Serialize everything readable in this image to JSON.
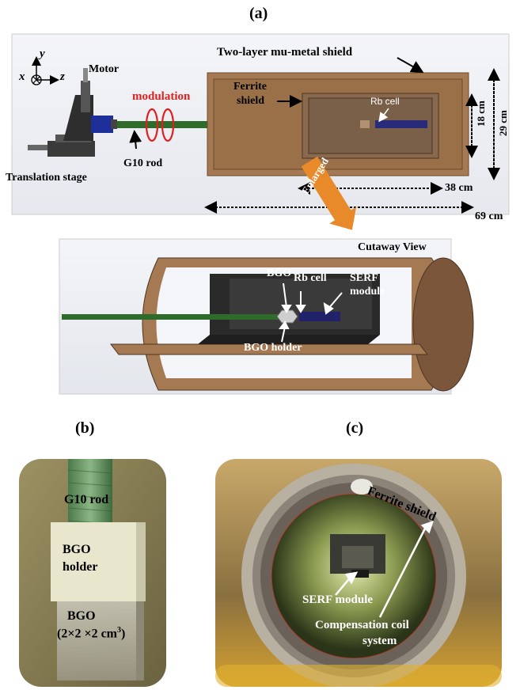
{
  "panel_a": {
    "label": "(a)",
    "axes": {
      "x": "x",
      "y": "y",
      "z": "z"
    },
    "labels": {
      "motor": "Motor",
      "modulation": "modulation",
      "translation_stage": "Translation stage",
      "g10_rod": "G10 rod",
      "mu_metal": "Two-layer mu-metal shield",
      "ferrite": "Ferrite",
      "ferrite2": "shield",
      "rb_cell": "Rb cell",
      "enlarged": "Enlarged"
    },
    "dimensions": {
      "d18": "18 cm",
      "d29": "29 cm",
      "d38": "38 cm",
      "d69": "69 cm"
    },
    "cutaway": {
      "title": "Cutaway View",
      "bgo": "BGO",
      "rb_cell": "Rb cell",
      "serf1": "SERF",
      "serf2": "module",
      "bgo_holder": "BGO holder"
    }
  },
  "panel_b": {
    "label": "(b)",
    "g10_rod": "G10 rod",
    "holder1": "BGO",
    "holder2": "holder",
    "bgo": "BGO",
    "size": "(2×2 ×2 cm",
    "size_sup": "3",
    "size_end": ")"
  },
  "panel_c": {
    "label": "(c)",
    "ferrite": "Ferrite shield",
    "serf": "SERF module",
    "coil1": "Compensation coil",
    "coil2": "system"
  },
  "colors": {
    "shield_brown": "#a57a52",
    "rod_green": "#2f6b2a",
    "modulation_red": "#e02020",
    "arrow_orange": "#e88a2a"
  }
}
